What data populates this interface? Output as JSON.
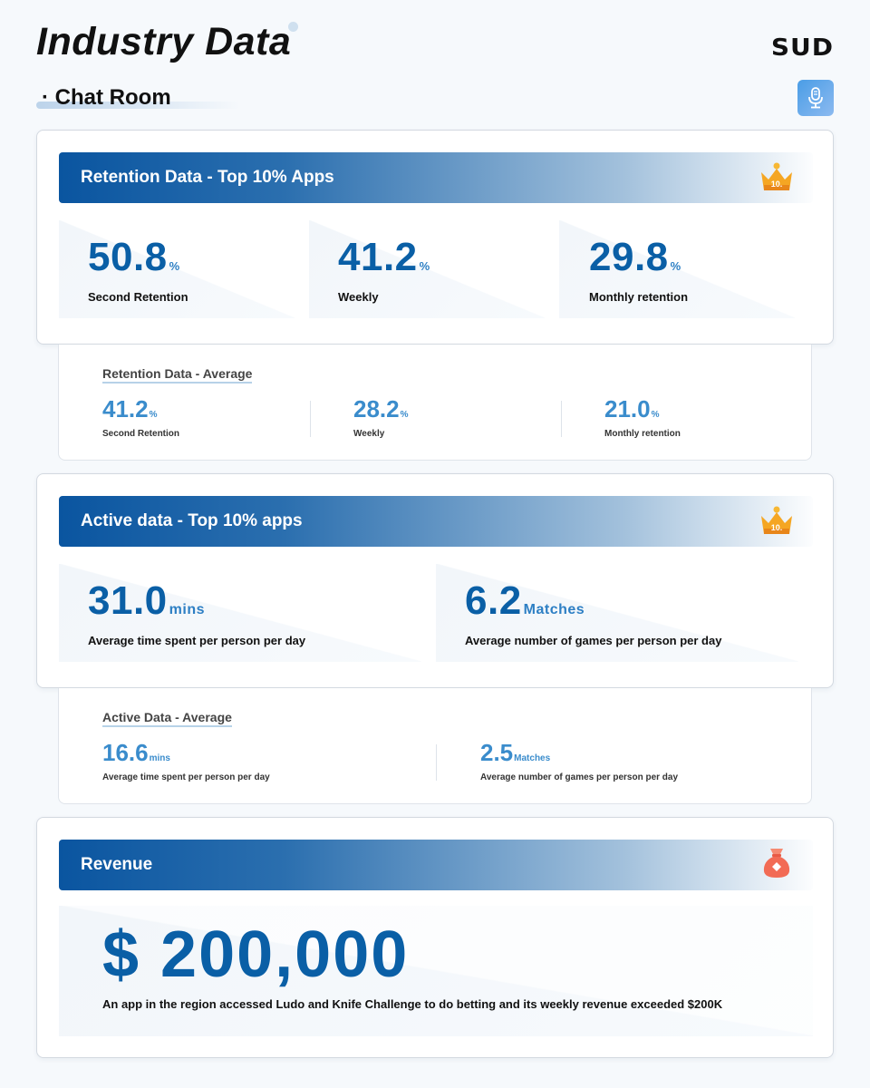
{
  "header": {
    "title": "Industry Data",
    "brand": "SUD",
    "section": "· Chat Room"
  },
  "retention_top": {
    "title": "Retention Data - Top 10% Apps",
    "badge": "10.",
    "stats": [
      {
        "value": "50.8",
        "unit": "%",
        "label": "Second Retention"
      },
      {
        "value": "41.2",
        "unit": "%",
        "label": "Weekly"
      },
      {
        "value": "29.8",
        "unit": "%",
        "label": "Monthly retention"
      }
    ]
  },
  "retention_avg": {
    "title": "Retention Data - Average",
    "stats": [
      {
        "value": "41.2",
        "unit": "%",
        "label": "Second Retention"
      },
      {
        "value": "28.2",
        "unit": "%",
        "label": "Weekly"
      },
      {
        "value": "21.0",
        "unit": "%",
        "label": "Monthly retention"
      }
    ]
  },
  "active_top": {
    "title": "Active data - Top 10% apps",
    "badge": "10.",
    "stats": [
      {
        "value": "31.0",
        "unit": "mins",
        "label": "Average time spent per person per day"
      },
      {
        "value": "6.2",
        "unit": "Matches",
        "label": "Average number of games per person per day"
      }
    ]
  },
  "active_avg": {
    "title": "Active Data - Average",
    "stats": [
      {
        "value": "16.6",
        "unit": "mins",
        "label": "Average time spent per person per day"
      },
      {
        "value": "2.5",
        "unit": "Matches",
        "label": "Average number of games per person per day"
      }
    ]
  },
  "revenue": {
    "title": "Revenue",
    "amount": "$ 200,000",
    "description": "An app in the region accessed Ludo and Knife Challenge to do betting and its weekly revenue exceeded $200K"
  },
  "colors": {
    "accent": "#0a5fa6",
    "avg_accent": "#3a8ccc",
    "banner_start": "#0a55a0",
    "crown": "#f5a623",
    "moneybag": "#f26b55"
  },
  "icons": {
    "mic": "microphone-icon",
    "crown": "crown-icon",
    "moneybag": "money-bag-icon"
  }
}
